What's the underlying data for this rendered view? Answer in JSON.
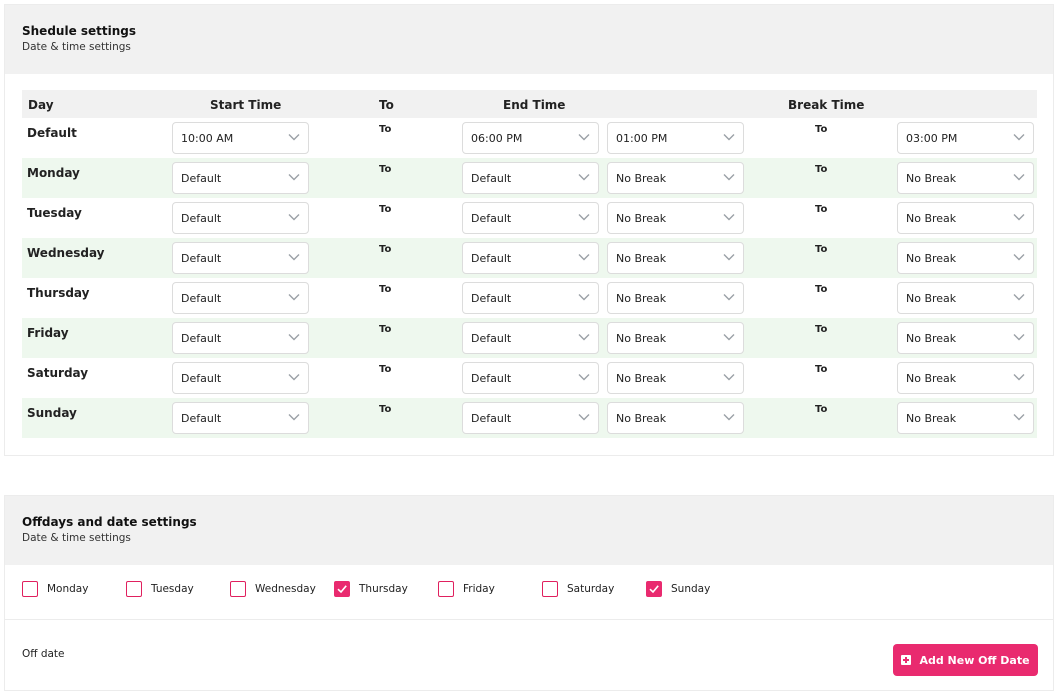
{
  "schedule": {
    "title": "Shedule settings",
    "subtitle": "Date & time settings",
    "headers": {
      "day": "Day",
      "start": "Start Time",
      "to": "To",
      "end": "End Time",
      "break": "Break Time"
    },
    "to_label": "To",
    "rows": [
      {
        "day": "Default",
        "start": "10:00 AM",
        "end": "06:00 PM",
        "break_start": "01:00 PM",
        "break_end": "03:00 PM"
      },
      {
        "day": "Monday",
        "start": "Default",
        "end": "Default",
        "break_start": "No Break",
        "break_end": "No Break"
      },
      {
        "day": "Tuesday",
        "start": "Default",
        "end": "Default",
        "break_start": "No Break",
        "break_end": "No Break"
      },
      {
        "day": "Wednesday",
        "start": "Default",
        "end": "Default",
        "break_start": "No Break",
        "break_end": "No Break"
      },
      {
        "day": "Thursday",
        "start": "Default",
        "end": "Default",
        "break_start": "No Break",
        "break_end": "No Break"
      },
      {
        "day": "Friday",
        "start": "Default",
        "end": "Default",
        "break_start": "No Break",
        "break_end": "No Break"
      },
      {
        "day": "Saturday",
        "start": "Default",
        "end": "Default",
        "break_start": "No Break",
        "break_end": "No Break"
      },
      {
        "day": "Sunday",
        "start": "Default",
        "end": "Default",
        "break_start": "No Break",
        "break_end": "No Break"
      }
    ]
  },
  "offdays": {
    "title": "Offdays and date settings",
    "subtitle": "Date & time settings",
    "days": [
      {
        "label": "Monday",
        "checked": false
      },
      {
        "label": "Tuesday",
        "checked": false
      },
      {
        "label": "Wednesday",
        "checked": false
      },
      {
        "label": "Thursday",
        "checked": true
      },
      {
        "label": "Friday",
        "checked": false
      },
      {
        "label": "Saturday",
        "checked": false
      },
      {
        "label": "Sunday",
        "checked": true
      }
    ],
    "off_date_label": "Off date",
    "add_button_label": "Add New Off Date"
  },
  "colors": {
    "accent": "#e92a6f",
    "row_alt": "#eef8ee",
    "header_bg": "#f1f1f1"
  },
  "icons": {
    "select": "chevron-down-icon",
    "checkbox_on": "check-icon",
    "add": "plus-square-icon"
  }
}
